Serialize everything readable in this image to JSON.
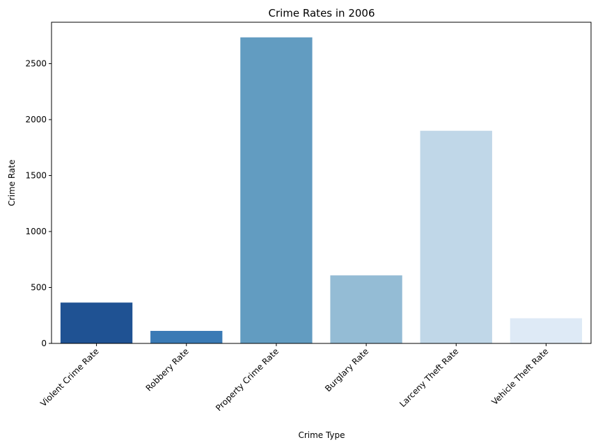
{
  "chart_data": {
    "type": "bar",
    "title": "Crime Rates in 2006",
    "xlabel": "Crime Type",
    "ylabel": "Crime Rate",
    "categories": [
      "Violent Crime Rate",
      "Robbery Rate",
      "Property Crime Rate",
      "Burglary Rate",
      "Larceny Theft Rate",
      "Vehicle Theft Rate"
    ],
    "values": [
      365,
      112,
      2735,
      608,
      1900,
      225
    ],
    "colors": [
      "#1f5293",
      "#3a7ab5",
      "#629cc1",
      "#94bcd5",
      "#c0d7e8",
      "#deeaf6"
    ],
    "ylim": [
      0,
      2870
    ],
    "yticks": [
      0,
      500,
      1000,
      1500,
      2000,
      2500
    ],
    "grid": false
  }
}
